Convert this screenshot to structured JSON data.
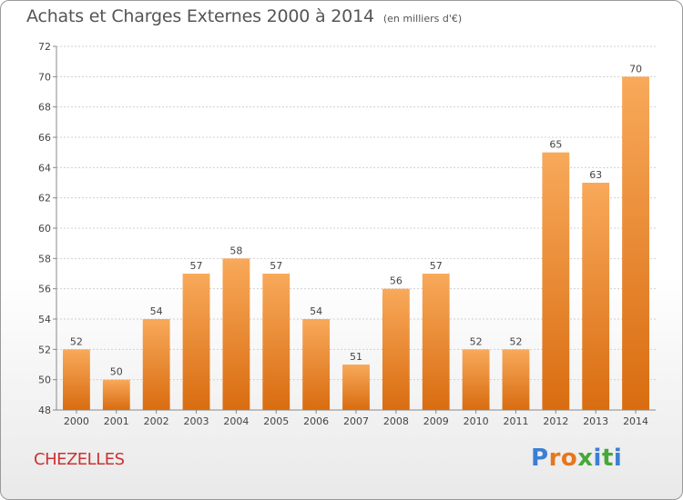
{
  "title": "Achats et Charges Externes 2000 à 2014",
  "unit": "(en milliers d'€)",
  "commune": "CHEZELLES",
  "logo": {
    "text": "Proxiti",
    "letters": [
      "P",
      "r",
      "o",
      "x",
      "i",
      "t",
      "i"
    ],
    "colors": [
      "#3a7fd5",
      "#e8761a",
      "#e8761a",
      "#47a83a",
      "#3a7fd5",
      "#47a83a",
      "#3a7fd5"
    ]
  },
  "colors": {
    "bar_top": "#f8a95a",
    "bar_bottom": "#d96c10",
    "grid": "#d0d0d0",
    "axis": "#888888",
    "commune": "#cc3333"
  },
  "chart_data": {
    "type": "bar",
    "title": "Achats et Charges Externes 2000 à 2014",
    "subtitle": "(en milliers d'€)",
    "categories": [
      "2000",
      "2001",
      "2002",
      "2003",
      "2004",
      "2005",
      "2006",
      "2007",
      "2008",
      "2009",
      "2010",
      "2011",
      "2012",
      "2013",
      "2014"
    ],
    "values": [
      52,
      50,
      54,
      57,
      58,
      57,
      54,
      51,
      56,
      57,
      52,
      52,
      65,
      63,
      70
    ],
    "ylim": [
      48,
      72
    ],
    "yticks": [
      48,
      50,
      52,
      54,
      56,
      58,
      60,
      62,
      64,
      66,
      68,
      70,
      72
    ],
    "grid": true,
    "data_labels": true,
    "xlabel": "",
    "ylabel": ""
  }
}
